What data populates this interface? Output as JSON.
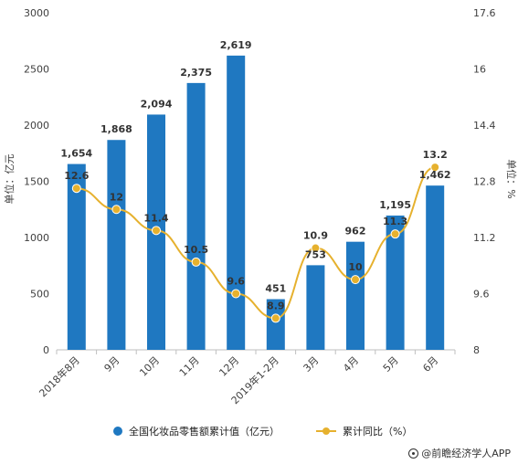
{
  "chart_data": {
    "type": "bar+line",
    "categories": [
      "2018年8月",
      "9月",
      "10月",
      "11月",
      "12月",
      "2019年1-2月",
      "3月",
      "4月",
      "5月",
      "6月"
    ],
    "series": [
      {
        "name": "全国化妆品零售额累计值（亿元）",
        "type": "bar",
        "axis": "left",
        "color": "#1f78c1",
        "values": [
          1654,
          1868,
          2094,
          2375,
          2619,
          451,
          753,
          962,
          1195,
          1462
        ],
        "labels": [
          "1,654",
          "1,868",
          "2,094",
          "2,375",
          "2,619",
          "451",
          "753",
          "962",
          "1,195",
          "1,462"
        ]
      },
      {
        "name": "累计同比（%）",
        "type": "line",
        "axis": "right",
        "color": "#e6b12e",
        "values": [
          12.6,
          12,
          11.4,
          10.5,
          9.6,
          8.9,
          10.9,
          10,
          11.3,
          13.2
        ],
        "labels": [
          "12.6",
          "12",
          "11.4",
          "10.5",
          "9.6",
          "8.9",
          "10.9",
          "10",
          "11.3",
          "13.2"
        ]
      }
    ],
    "y_left": {
      "label": "单位：亿元",
      "min": 0,
      "max": 3000,
      "ticks": [
        0,
        500,
        1000,
        1500,
        2000,
        2500,
        3000
      ],
      "tick_labels": [
        "0",
        "500",
        "1000",
        "1500",
        "2000",
        "2500",
        "3000"
      ]
    },
    "y_right": {
      "label": "单位：%",
      "min": 8,
      "max": 17.6,
      "ticks": [
        8,
        9.6,
        11.2,
        12.8,
        14.4,
        16,
        17.6
      ],
      "tick_labels": [
        "8",
        "9.6",
        "11.2",
        "12.8",
        "14.4",
        "16",
        "17.6"
      ]
    },
    "grid": false,
    "legend_position": "bottom"
  },
  "legend": {
    "bar_label": "全国化妆品零售额累计值（亿元）",
    "line_label": "累计同比（%）"
  },
  "source": "@前瞻经济学人APP"
}
